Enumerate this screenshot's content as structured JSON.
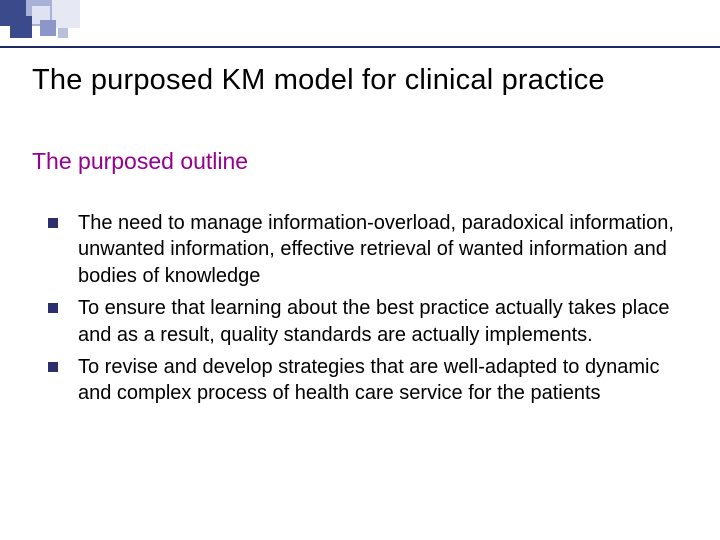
{
  "colors": {
    "rule": "#1f2a63",
    "subtitle": "#96008f",
    "bullet_marker": "#2b2f6b",
    "decor_dark": "#3b4a8a",
    "decor_mid": "#8b96c9",
    "decor_light": "#a8b1d8",
    "decor_pale": "#e6e9f4",
    "background": "#ffffff",
    "body_text": "#000000"
  },
  "typography": {
    "title_fontsize": 29,
    "subtitle_fontsize": 23,
    "body_fontsize": 20,
    "font_family": "Arial"
  },
  "title": "The purposed KM model for clinical practice",
  "subtitle": "The purposed outline",
  "bullets": [
    "The need to manage information-overload, paradoxical information, unwanted information, effective retrieval of wanted information and bodies of knowledge",
    "To ensure that learning about the best practice actually takes place and as a result, quality standards are actually implements.",
    "To revise and develop strategies that are well-adapted to dynamic and complex process of health care service for the patients"
  ]
}
